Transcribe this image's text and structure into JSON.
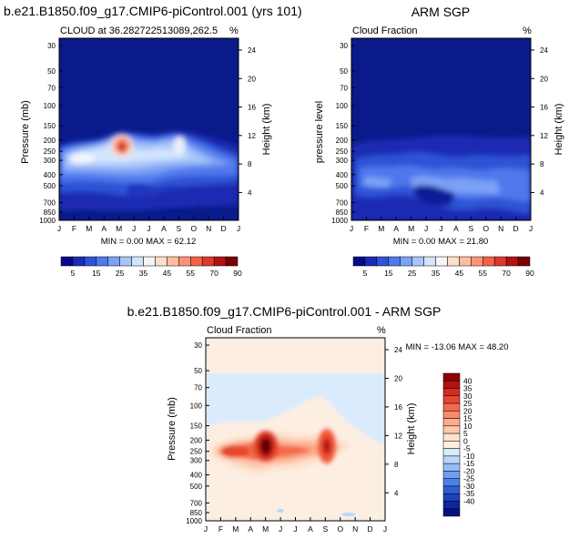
{
  "chart_data": [
    {
      "type": "heatmap",
      "title": "b.e21.B1850.f09_g17.CMIP6-piControl.001 (yrs 101)",
      "subtitle_left": "CLOUD at 36.282722513089,262.5",
      "subtitle_right": "%",
      "ylabel": "Pressure (mb)",
      "ylabel_right": "Height (km)",
      "stats": "MIN =   0.00 MAX =  62.12",
      "x_ticks": [
        "J",
        "F",
        "M",
        "A",
        "M",
        "J",
        "J",
        "A",
        "S",
        "O",
        "N",
        "D",
        "J"
      ],
      "y_ticks": [
        "30",
        "50",
        "70",
        "100",
        "150",
        "200",
        "250",
        "300",
        "400",
        "500",
        "700",
        "850",
        "1000"
      ],
      "height_ticks": [
        "24",
        "20",
        "16",
        "12",
        "8",
        "4"
      ],
      "min": 0.0,
      "max": 62.12,
      "peaks": [
        {
          "month": 4.0,
          "pressure": 230,
          "value": 62
        },
        {
          "month": 8.0,
          "pressure": 230,
          "value": 30
        },
        {
          "month": 1.0,
          "pressure": 280,
          "value": 28
        }
      ]
    },
    {
      "type": "heatmap",
      "title": "ARM SGP",
      "subtitle_left": "Cloud Fraction",
      "subtitle_right": "%",
      "ylabel": "pressure level",
      "ylabel_right": "Height (km)",
      "stats": "MIN =   0.00 MAX =  21.80",
      "x_ticks": [
        "J",
        "F",
        "M",
        "A",
        "M",
        "J",
        "J",
        "A",
        "S",
        "O",
        "N",
        "D",
        "J"
      ],
      "y_ticks": [
        "30",
        "50",
        "70",
        "100",
        "150",
        "200",
        "250",
        "300",
        "400",
        "500",
        "700",
        "850",
        "1000"
      ],
      "height_ticks": [
        "24",
        "20",
        "16",
        "12",
        "8",
        "4"
      ],
      "min": 0.0,
      "max": 21.8
    },
    {
      "type": "heatmap",
      "title": "b.e21.B1850.f09_g17.CMIP6-piControl.001 - ARM SGP",
      "subtitle_left": "Cloud Fraction",
      "subtitle_right": "%",
      "ylabel": "Pressure (mb)",
      "ylabel_right": "Height (km)",
      "stats": "MIN = -13.06 MAX =  48.20",
      "x_ticks": [
        "J",
        "F",
        "M",
        "A",
        "M",
        "J",
        "J",
        "A",
        "S",
        "O",
        "N",
        "D",
        "J"
      ],
      "y_ticks": [
        "30",
        "50",
        "70",
        "100",
        "150",
        "200",
        "250",
        "300",
        "400",
        "500",
        "700",
        "850",
        "1000"
      ],
      "height_ticks": [
        "24",
        "20",
        "16",
        "12",
        "8",
        "4"
      ],
      "min": -13.06,
      "max": 48.2,
      "peaks": [
        {
          "month": 4.0,
          "pressure": 215,
          "value": 48
        },
        {
          "month": 8.0,
          "pressure": 230,
          "value": 30
        },
        {
          "month": 1.0,
          "pressure": 260,
          "value": 20
        }
      ]
    }
  ],
  "colorbars": {
    "horizontal_labels": [
      "5",
      "15",
      "25",
      "35",
      "45",
      "55",
      "70",
      "90"
    ],
    "horizontal_colors": [
      "#08088c",
      "#1a2cb3",
      "#2f52d6",
      "#4f78eb",
      "#7ba1f5",
      "#a9c6fa",
      "#d3e4fc",
      "#f5f5f5",
      "#fde0cb",
      "#fcbda0",
      "#fb9477",
      "#f06347",
      "#d93a2a",
      "#b31212",
      "#7a0000"
    ],
    "vertical_labels": [
      "40",
      "35",
      "30",
      "25",
      "20",
      "15",
      "10",
      "5",
      "0",
      "-5",
      "-10",
      "-15",
      "-20",
      "-25",
      "-30",
      "-35",
      "-40"
    ],
    "vertical_colors": [
      "#8c0000",
      "#b31212",
      "#d42a20",
      "#e8472f",
      "#f46a4a",
      "#fa8c6a",
      "#fcab8c",
      "#fdc9ae",
      "#fde3d0",
      "#fdf0e4",
      "#d9ebfd",
      "#b9d6fb",
      "#95bdf7",
      "#6fa0f0",
      "#4b80e5",
      "#2f5fd6",
      "#1c40bd",
      "#0e24a0",
      "#05107f"
    ]
  }
}
